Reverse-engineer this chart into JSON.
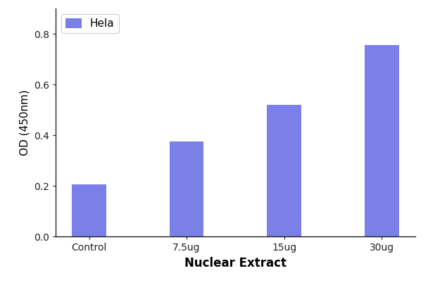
{
  "categories": [
    "Control",
    "7.5ug",
    "15ug",
    "30ug"
  ],
  "values": [
    0.205,
    0.375,
    0.52,
    0.755
  ],
  "bar_color": "#7B7FE8",
  "bar_edgecolor": "none",
  "xlabel": "Nuclear Extract",
  "ylabel": "OD (450nm)",
  "ylim": [
    0,
    0.9
  ],
  "yticks": [
    0.0,
    0.2,
    0.4,
    0.6,
    0.8
  ],
  "legend_label": "Hela",
  "legend_facecolor": "#7B7FE8",
  "background_color": "#ffffff",
  "bar_width": 0.35,
  "xlabel_fontsize": 12,
  "ylabel_fontsize": 11,
  "tick_fontsize": 10,
  "legend_fontsize": 11,
  "spine_color": "#222222"
}
